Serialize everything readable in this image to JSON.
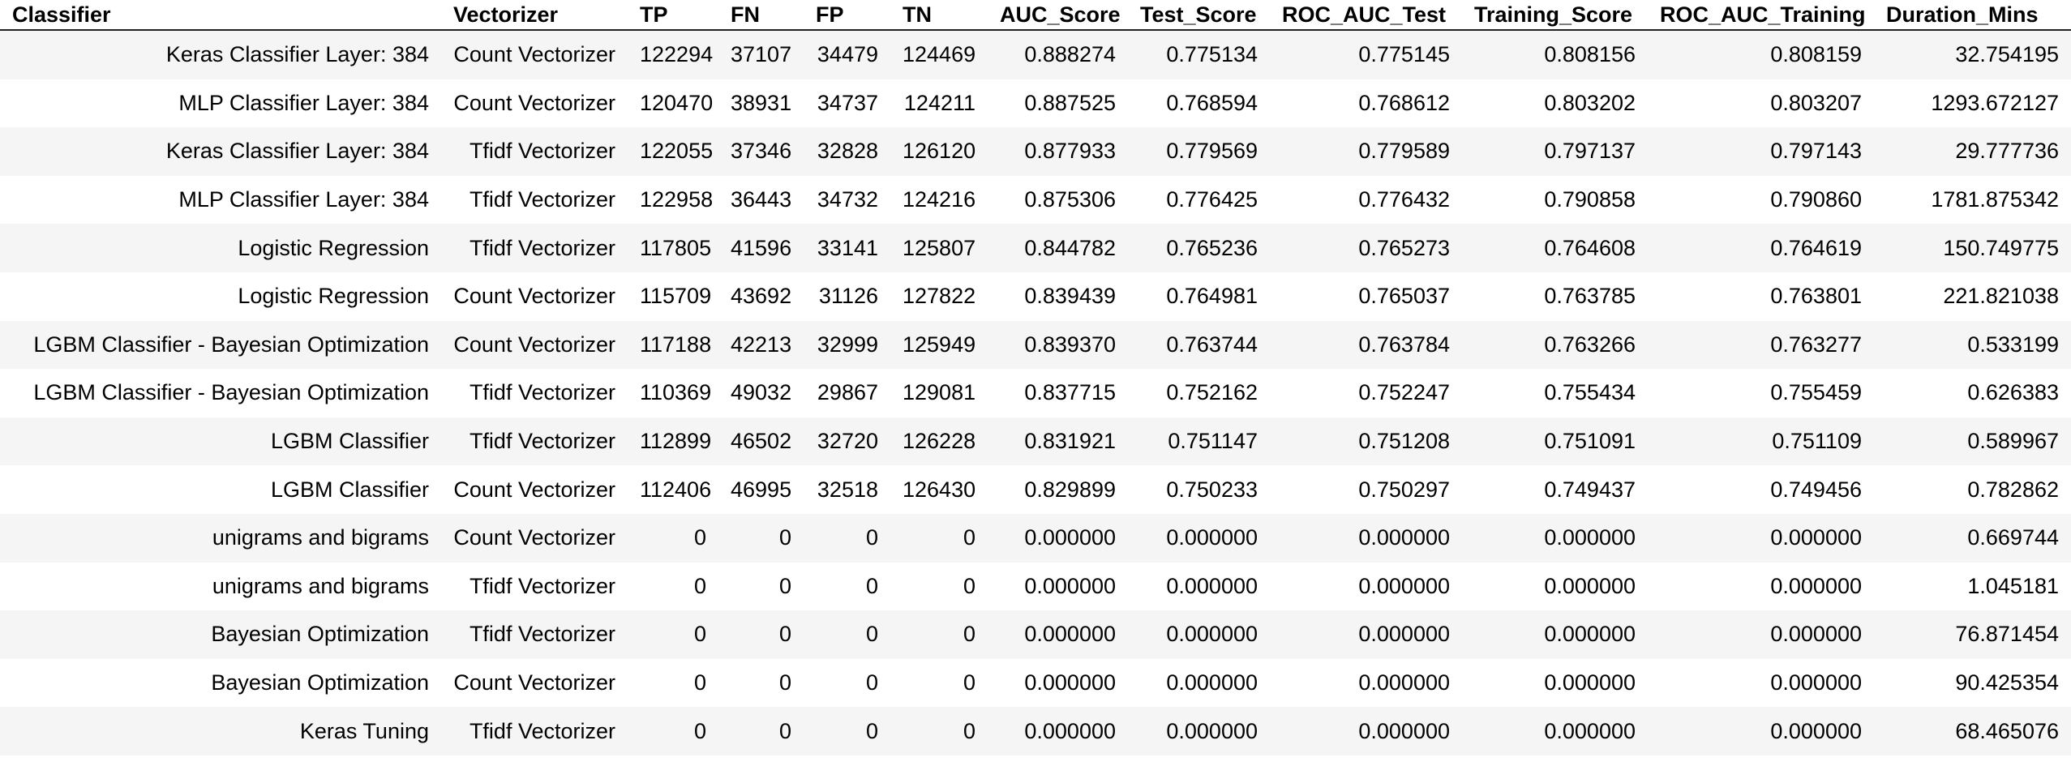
{
  "table": {
    "columns": [
      "Classifier",
      "Vectorizer",
      "TP",
      "FN",
      "FP",
      "TN",
      "AUC_Score",
      "Test_Score",
      "ROC_AUC_Test",
      "Training_Score",
      "ROC_AUC_Training",
      "Duration_Mins"
    ],
    "rows": [
      [
        "Keras Classifier Layer: 384",
        "Count Vectorizer",
        "122294",
        "37107",
        "34479",
        "124469",
        "0.888274",
        "0.775134",
        "0.775145",
        "0.808156",
        "0.808159",
        "32.754195"
      ],
      [
        "MLP Classifier Layer: 384",
        "Count Vectorizer",
        "120470",
        "38931",
        "34737",
        "124211",
        "0.887525",
        "0.768594",
        "0.768612",
        "0.803202",
        "0.803207",
        "1293.672127"
      ],
      [
        "Keras Classifier Layer: 384",
        "Tfidf Vectorizer",
        "122055",
        "37346",
        "32828",
        "126120",
        "0.877933",
        "0.779569",
        "0.779589",
        "0.797137",
        "0.797143",
        "29.777736"
      ],
      [
        "MLP Classifier Layer: 384",
        "Tfidf Vectorizer",
        "122958",
        "36443",
        "34732",
        "124216",
        "0.875306",
        "0.776425",
        "0.776432",
        "0.790858",
        "0.790860",
        "1781.875342"
      ],
      [
        "Logistic Regression",
        "Tfidf Vectorizer",
        "117805",
        "41596",
        "33141",
        "125807",
        "0.844782",
        "0.765236",
        "0.765273",
        "0.764608",
        "0.764619",
        "150.749775"
      ],
      [
        "Logistic Regression",
        "Count Vectorizer",
        "115709",
        "43692",
        "31126",
        "127822",
        "0.839439",
        "0.764981",
        "0.765037",
        "0.763785",
        "0.763801",
        "221.821038"
      ],
      [
        "LGBM Classifier - Bayesian Optimization",
        "Count Vectorizer",
        "117188",
        "42213",
        "32999",
        "125949",
        "0.839370",
        "0.763744",
        "0.763784",
        "0.763266",
        "0.763277",
        "0.533199"
      ],
      [
        "LGBM Classifier - Bayesian Optimization",
        "Tfidf Vectorizer",
        "110369",
        "49032",
        "29867",
        "129081",
        "0.837715",
        "0.752162",
        "0.752247",
        "0.755434",
        "0.755459",
        "0.626383"
      ],
      [
        "LGBM Classifier",
        "Tfidf Vectorizer",
        "112899",
        "46502",
        "32720",
        "126228",
        "0.831921",
        "0.751147",
        "0.751208",
        "0.751091",
        "0.751109",
        "0.589967"
      ],
      [
        "LGBM Classifier",
        "Count Vectorizer",
        "112406",
        "46995",
        "32518",
        "126430",
        "0.829899",
        "0.750233",
        "0.750297",
        "0.749437",
        "0.749456",
        "0.782862"
      ],
      [
        "unigrams and bigrams",
        "Count Vectorizer",
        "0",
        "0",
        "0",
        "0",
        "0.000000",
        "0.000000",
        "0.000000",
        "0.000000",
        "0.000000",
        "0.669744"
      ],
      [
        "unigrams and bigrams",
        "Tfidf Vectorizer",
        "0",
        "0",
        "0",
        "0",
        "0.000000",
        "0.000000",
        "0.000000",
        "0.000000",
        "0.000000",
        "1.045181"
      ],
      [
        "Bayesian Optimization",
        "Tfidf Vectorizer",
        "0",
        "0",
        "0",
        "0",
        "0.000000",
        "0.000000",
        "0.000000",
        "0.000000",
        "0.000000",
        "76.871454"
      ],
      [
        "Bayesian Optimization",
        "Count Vectorizer",
        "0",
        "0",
        "0",
        "0",
        "0.000000",
        "0.000000",
        "0.000000",
        "0.000000",
        "0.000000",
        "90.425354"
      ],
      [
        "Keras Tuning",
        "Tfidf Vectorizer",
        "0",
        "0",
        "0",
        "0",
        "0.000000",
        "0.000000",
        "0.000000",
        "0.000000",
        "0.000000",
        "68.465076"
      ]
    ]
  }
}
